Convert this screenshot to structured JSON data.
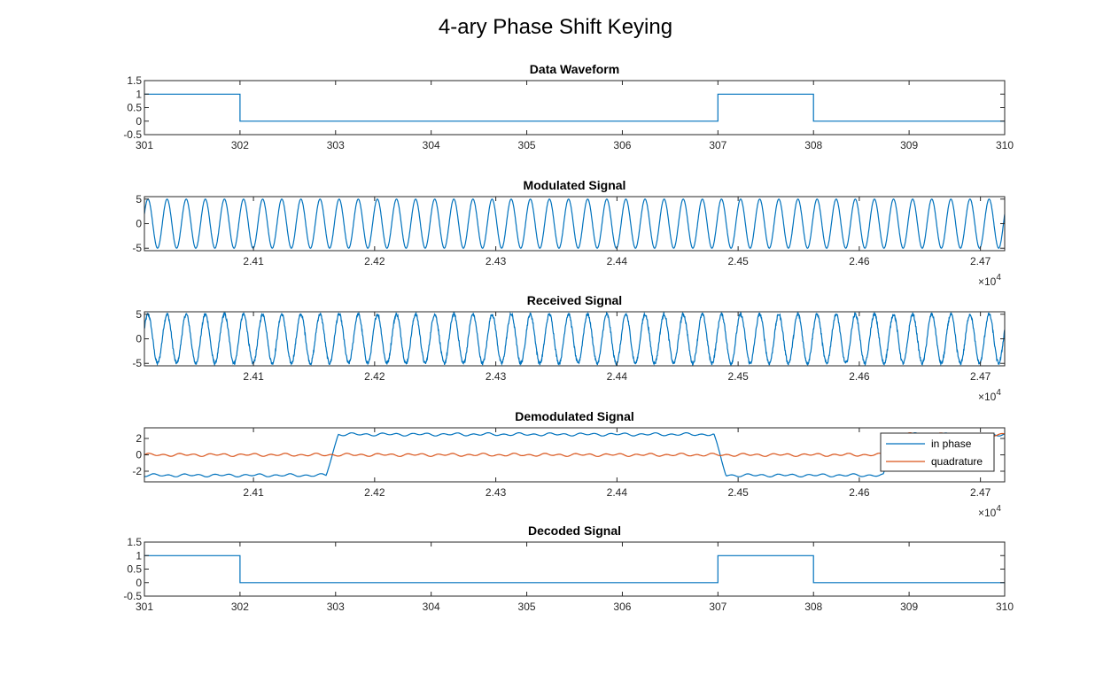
{
  "figure": {
    "title": "4-ary Phase Shift Keying"
  },
  "colors": {
    "series1": "#0072BD",
    "series2": "#D95319",
    "axis": "#262626"
  },
  "chart_data": [
    {
      "type": "line",
      "title": "Data Waveform",
      "xlabel": "",
      "ylabel": "",
      "xlim": [
        301,
        310
      ],
      "ylim": [
        -0.5,
        1.5
      ],
      "xticks": [
        "301",
        "302",
        "303",
        "304",
        "305",
        "306",
        "307",
        "308",
        "309",
        "310"
      ],
      "yticks": [
        "1.5",
        "1",
        "0.5",
        "0",
        "-0.5"
      ],
      "step": true,
      "series": [
        {
          "x": [
            301,
            302,
            303,
            304,
            305,
            306,
            307,
            308,
            309
          ],
          "values": [
            1,
            0,
            0,
            0,
            0,
            0,
            1,
            0,
            0
          ]
        }
      ]
    },
    {
      "type": "line",
      "title": "Modulated Signal",
      "xlabel": "",
      "ylabel": "",
      "xlim": [
        24010,
        24720
      ],
      "ylim": [
        -5.5,
        5.5
      ],
      "xticks": [
        "2.41",
        "2.42",
        "2.43",
        "2.44",
        "2.45",
        "2.46",
        "2.47"
      ],
      "xtick_values": [
        24100,
        24200,
        24300,
        24400,
        24500,
        24600,
        24700
      ],
      "x_exponent": "4",
      "yticks": [
        "5",
        "0",
        "-5"
      ],
      "signal": {
        "amplitude": 5,
        "cycles_in_view": 45,
        "noise": 0
      }
    },
    {
      "type": "line",
      "title": "Received Signal",
      "xlabel": "",
      "ylabel": "",
      "xlim": [
        24010,
        24720
      ],
      "ylim": [
        -5.5,
        5.5
      ],
      "xticks": [
        "2.41",
        "2.42",
        "2.43",
        "2.44",
        "2.45",
        "2.46",
        "2.47"
      ],
      "xtick_values": [
        24100,
        24200,
        24300,
        24400,
        24500,
        24600,
        24700
      ],
      "x_exponent": "4",
      "yticks": [
        "5",
        "0",
        "-5"
      ],
      "signal": {
        "amplitude": 5,
        "cycles_in_view": 45,
        "noise": 0.35
      }
    },
    {
      "type": "line",
      "title": "Demodulated Signal",
      "xlabel": "",
      "ylabel": "",
      "xlim": [
        24010,
        24720
      ],
      "ylim": [
        -3.3,
        3.3
      ],
      "xticks": [
        "2.41",
        "2.42",
        "2.43",
        "2.44",
        "2.45",
        "2.46",
        "2.47"
      ],
      "xtick_values": [
        24100,
        24200,
        24300,
        24400,
        24500,
        24600,
        24700
      ],
      "x_exponent": "4",
      "yticks": [
        "2",
        "0",
        "-2"
      ],
      "legend": {
        "location": "top-right",
        "entries": [
          "in phase",
          "quadrature"
        ]
      },
      "series": [
        {
          "name": "in phase",
          "x": [
            24010,
            24160,
            24170,
            24480,
            24490,
            24620,
            24630,
            24720
          ],
          "values": [
            -2.5,
            -2.5,
            2.5,
            2.5,
            -2.5,
            -2.5,
            2.5,
            2.5
          ]
        },
        {
          "name": "quadrature",
          "x": [
            24010,
            24620,
            24630,
            24720
          ],
          "values": [
            0,
            0,
            2.5,
            2.5
          ]
        }
      ]
    },
    {
      "type": "line",
      "title": "Decoded Signal",
      "xlabel": "",
      "ylabel": "",
      "xlim": [
        301,
        310
      ],
      "ylim": [
        -0.5,
        1.5
      ],
      "xticks": [
        "301",
        "302",
        "303",
        "304",
        "305",
        "306",
        "307",
        "308",
        "309",
        "310"
      ],
      "yticks": [
        "1.5",
        "1",
        "0.5",
        "0",
        "-0.5"
      ],
      "step": true,
      "series": [
        {
          "x": [
            301,
            302,
            303,
            304,
            305,
            306,
            307,
            308,
            309
          ],
          "values": [
            1,
            0,
            0,
            0,
            0,
            0,
            1,
            0,
            0
          ]
        }
      ]
    }
  ]
}
